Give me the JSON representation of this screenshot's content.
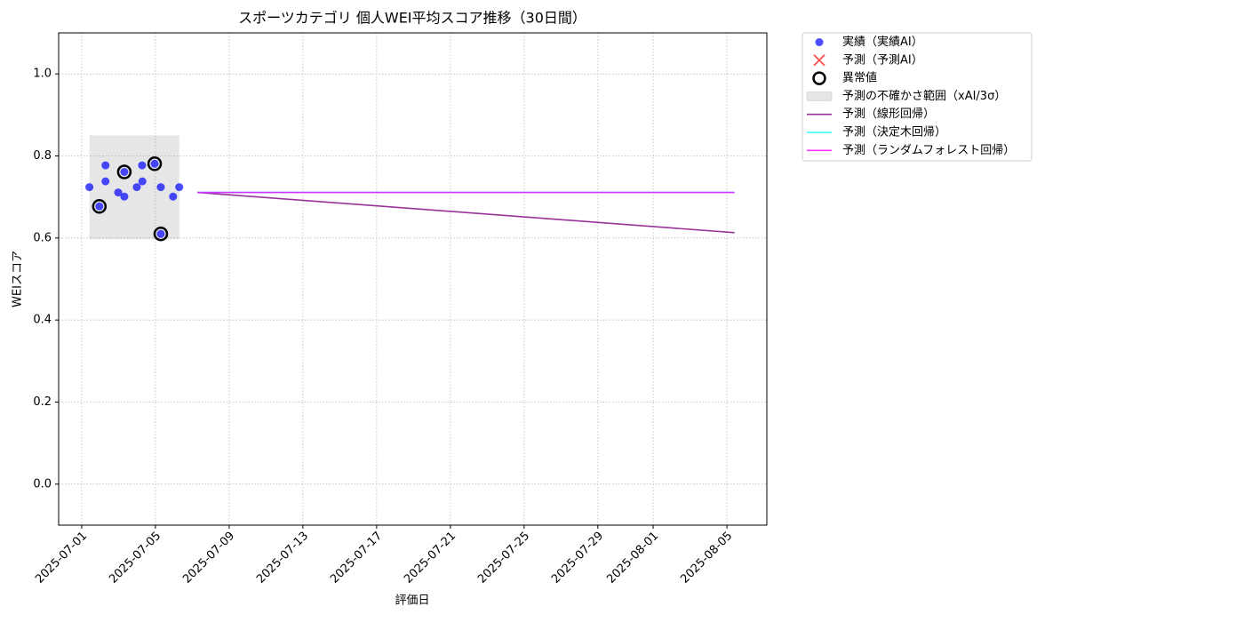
{
  "chart_data": {
    "type": "scatter",
    "title": "スポーツカテゴリ 個人WEI平均スコア推移（30日間）",
    "xlabel": "評価日",
    "ylabel": "WEIスコア",
    "xlim": [
      "2025-06-29T18:00",
      "2025-08-07T04:00"
    ],
    "ylim": [
      -0.1,
      1.1
    ],
    "xticks": [
      "2025-07-01",
      "2025-07-05",
      "2025-07-09",
      "2025-07-13",
      "2025-07-17",
      "2025-07-21",
      "2025-07-25",
      "2025-07-29",
      "2025-08-01",
      "2025-08-05"
    ],
    "yticks": [
      {
        "value": 0,
        "label": "0.0"
      },
      0.2,
      0.4,
      0.6,
      0.8,
      {
        "value": 1,
        "label": "1.0"
      }
    ],
    "grid": true,
    "legend": "outside upper right",
    "series": [
      {
        "name": "実績（実績AI）",
        "type": "scatter",
        "color": "#0000ff",
        "x": [
          "2025-07-01T10:00",
          "2025-07-01T23:00",
          "2025-07-02T07:00",
          "2025-07-02T07:00",
          "2025-07-02T23:30",
          "2025-07-03T07:30",
          "2025-07-03T07:30",
          "2025-07-03T23:45",
          "2025-07-04T06:40",
          "2025-07-04T07:00",
          "2025-07-04T23:00",
          "2025-07-05T07:00",
          "2025-07-05T07:00",
          "2025-07-05T23:00",
          "2025-07-06T07:00"
        ],
        "values": [
          0.724,
          0.677,
          0.777,
          0.738,
          0.711,
          0.761,
          0.701,
          0.724,
          0.777,
          0.738,
          0.781,
          0.724,
          0.61,
          0.701,
          0.724
        ]
      },
      {
        "name": "予測（予測AI）",
        "type": "cross",
        "color": "#ff0000",
        "x": [],
        "values": []
      },
      {
        "name": "異常値",
        "type": "outlier",
        "color": "#000000",
        "x": [
          "2025-07-01T23:00",
          "2025-07-03T07:30",
          "2025-07-04T23:00",
          "2025-07-05T07:00"
        ],
        "values": [
          0.677,
          0.761,
          0.781,
          0.61
        ]
      },
      {
        "name": "予測の不確かさ範囲（xAI/3σ）",
        "type": "band",
        "color": "#808080",
        "x": [
          "2025-07-01T10:00",
          "2025-07-06T07:00"
        ],
        "lower": [
          0.597,
          0.597
        ],
        "upper": [
          0.85,
          0.85
        ]
      },
      {
        "name": "予測（線形回帰）",
        "type": "line",
        "color": "#800080",
        "x": [
          "2025-07-07T06:30",
          "2025-08-05T10:00"
        ],
        "values": [
          0.711,
          0.613
        ]
      },
      {
        "name": "予測（決定木回帰）",
        "type": "line",
        "color": "#00ffff",
        "x": [
          "2025-07-07T06:30",
          "2025-08-05T10:00"
        ],
        "values": [
          0.711,
          0.711
        ]
      },
      {
        "name": "予測（ランダムフォレスト回帰）",
        "type": "line",
        "color": "#ff00ff",
        "x": [
          "2025-07-07T06:30",
          "2025-08-05T10:00"
        ],
        "values": [
          0.711,
          0.711
        ]
      }
    ]
  }
}
